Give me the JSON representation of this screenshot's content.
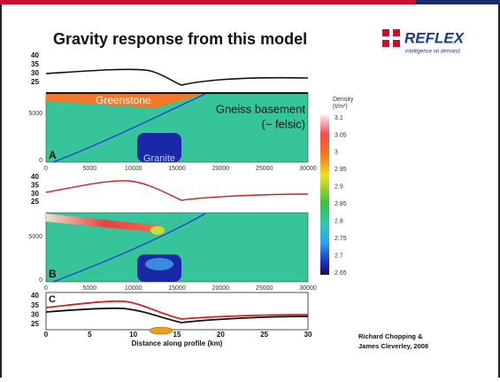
{
  "title": "Gravity response from this model",
  "logo": {
    "name": "REFLEX",
    "tagline": "intelligence on demand"
  },
  "profile_top": {
    "yticks": [
      "40",
      "35",
      "30",
      "25"
    ]
  },
  "model_a": {
    "label": "A",
    "yticks": [
      "5000",
      "0"
    ],
    "xticks": [
      "0",
      "5000",
      "10000",
      "15000",
      "20000",
      "25000",
      "30000"
    ],
    "annotations": [
      "Greenstone",
      "Gneiss basement",
      "(~ felsic)",
      "Granite"
    ]
  },
  "profile_middle": {
    "yticks": [
      "40",
      "35",
      "30",
      "25"
    ]
  },
  "model_b": {
    "label": "B",
    "yticks": [
      "5000",
      "0"
    ],
    "xticks": [
      "0",
      "5000",
      "10000",
      "15000",
      "20000",
      "25000",
      "30000"
    ]
  },
  "profile_c": {
    "label": "C",
    "yticks": [
      "40",
      "35",
      "30",
      "25"
    ],
    "xticks": [
      "0",
      "5",
      "10",
      "15",
      "20",
      "25",
      "30"
    ],
    "xlabel": "Distance along profile (km)"
  },
  "colorbar": {
    "title": "Density",
    "unit": "(t/m³)",
    "ticks": [
      "3.1",
      "3.05",
      "3",
      "2.95",
      "2.9",
      "2.85",
      "2.8",
      "2.75",
      "2.7",
      "2.65"
    ]
  },
  "credit": [
    "Richard Chopping &",
    "James Cleverley, 2008"
  ]
}
